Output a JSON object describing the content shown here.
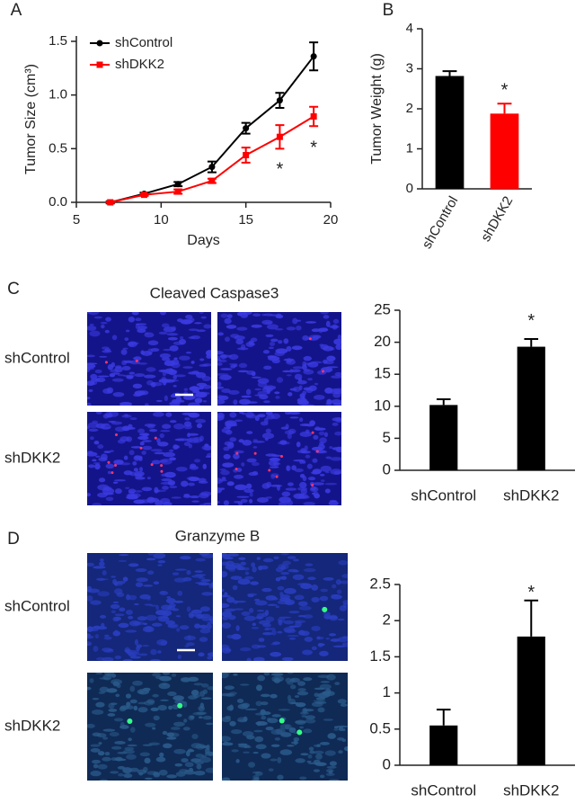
{
  "chart_data": [
    {
      "type": "line",
      "panel": "A",
      "xlabel": "Days",
      "ylabel": "Tumor Size (cm³)",
      "x": [
        7,
        9,
        11,
        13,
        15,
        17,
        19
      ],
      "series": [
        {
          "name": "shControl",
          "color": "#000000",
          "values": [
            0,
            0.08,
            0.17,
            0.33,
            0.69,
            0.95,
            1.36
          ],
          "errors": [
            0.01,
            0.01,
            0.02,
            0.05,
            0.05,
            0.07,
            0.13
          ]
        },
        {
          "name": "shDKK2",
          "color": "#ff0000",
          "values": [
            0,
            0.07,
            0.1,
            0.2,
            0.44,
            0.61,
            0.8
          ],
          "errors": [
            0.005,
            0.01,
            0.02,
            0.02,
            0.07,
            0.11,
            0.09
          ]
        }
      ],
      "xlim": [
        5,
        20
      ],
      "xticks": [
        5,
        10,
        15,
        20
      ],
      "ylim": [
        0,
        1.55
      ],
      "yticks": [
        {
          "value": 0,
          "label": "0.0"
        },
        0.5,
        {
          "value": 1,
          "label": "1.0"
        },
        1.5
      ],
      "annotations": [
        {
          "text": "*",
          "x": 17,
          "y": 0.3
        },
        {
          "text": "*",
          "x": 19,
          "y": 0.5
        }
      ]
    },
    {
      "type": "bar",
      "panel": "B",
      "ylabel": "Tumor Weight (g)",
      "categories": [
        "shControl",
        "shDKK2"
      ],
      "values": [
        2.82,
        1.88
      ],
      "errors": [
        0.12,
        0.25
      ],
      "colors": [
        "#000000",
        "#ff0000"
      ],
      "ylim": [
        0,
        4
      ],
      "yticks": [
        0,
        1,
        2,
        3,
        4
      ],
      "annotations": [
        {
          "text": "*",
          "x": "shDKK2",
          "y": 2.45
        }
      ]
    },
    {
      "type": "bar",
      "panel": "C",
      "image_title": "Cleaved Caspase3",
      "image_rows": [
        "shControl",
        "shDKK2"
      ],
      "categories": [
        "shControl",
        "shDKK2"
      ],
      "values": [
        10.2,
        19.3
      ],
      "errors": [
        0.9,
        1.2
      ],
      "colors": [
        "#000000",
        "#000000"
      ],
      "ylim": [
        0,
        25
      ],
      "yticks": [
        0,
        5,
        10,
        15,
        20,
        25
      ],
      "annotations": [
        {
          "text": "*",
          "x": "shDKK2",
          "y": 23.2
        }
      ]
    },
    {
      "type": "bar",
      "panel": "D",
      "image_title": "Granzyme B",
      "image_rows": [
        "shControl",
        "shDKK2"
      ],
      "categories": [
        "shControl",
        "shDKK2"
      ],
      "values": [
        0.55,
        1.78
      ],
      "errors": [
        0.22,
        0.5
      ],
      "colors": [
        "#000000",
        "#000000"
      ],
      "ylim": [
        0,
        2.5
      ],
      "yticks": [
        0,
        0.5,
        1,
        1.5,
        2,
        2.5
      ],
      "annotations": [
        {
          "text": "*",
          "x": "shDKK2",
          "y": 2.38
        }
      ]
    }
  ]
}
